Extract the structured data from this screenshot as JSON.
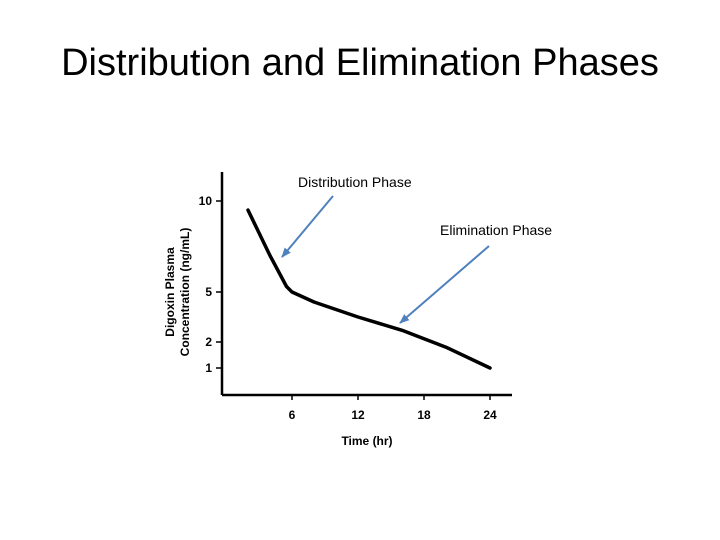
{
  "slide": {
    "title": "Distribution and Elimination Phases"
  },
  "annotations": {
    "distribution": "Distribution Phase",
    "elimination": "Elimination Phase",
    "arrow_color": "#4f81bd"
  },
  "chart_data": {
    "type": "line",
    "title": "",
    "xlabel": "Time (hr)",
    "ylabel": "Digoxin Plasma Concentration (ng/mL)",
    "x_ticks": [
      6,
      12,
      18,
      24
    ],
    "y_ticks": [
      10,
      5,
      2,
      1
    ],
    "series": [
      {
        "x": [
          2,
          4,
          5.5,
          6,
          8,
          12,
          16,
          20,
          24
        ],
        "y": [
          9.5,
          7,
          5.3,
          5,
          4.4,
          3.5,
          2.7,
          1.8,
          1
        ],
        "color": "#000000"
      }
    ],
    "grid": false,
    "legend": "none"
  }
}
